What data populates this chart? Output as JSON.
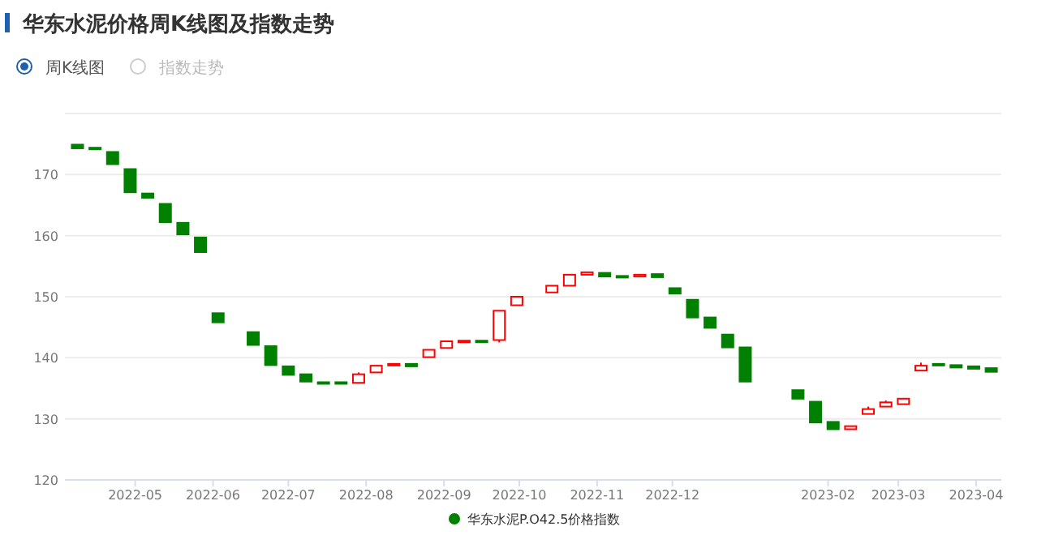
{
  "chart_data": {
    "type": "candlestick",
    "title": "华东水泥价格周K线图及指数走势",
    "annotations": [
      "周K线图",
      "指数走势"
    ],
    "x": [
      "2022-04-08",
      "2022-04-15",
      "2022-04-22",
      "2022-04-29",
      "2022-05-06",
      "2022-05-13",
      "2022-05-20",
      "2022-05-27",
      "2022-06-03",
      "2022-06-17",
      "2022-06-24",
      "2022-07-01",
      "2022-07-08",
      "2022-07-15",
      "2022-07-22",
      "2022-07-29",
      "2022-08-05",
      "2022-08-12",
      "2022-08-19",
      "2022-08-26",
      "2022-09-02",
      "2022-09-09",
      "2022-09-16",
      "2022-09-23",
      "2022-09-30",
      "2022-10-14",
      "2022-10-21",
      "2022-10-28",
      "2022-11-04",
      "2022-11-11",
      "2022-11-18",
      "2022-11-25",
      "2022-12-02",
      "2022-12-09",
      "2022-12-16",
      "2022-12-23",
      "2022-12-30",
      "2023-01-20",
      "2023-01-27",
      "2023-02-03",
      "2023-02-10",
      "2023-02-17",
      "2023-02-24",
      "2023-03-03",
      "2023-03-10",
      "2023-03-17",
      "2023-03-24",
      "2023-03-31",
      "2023-04-07"
    ],
    "series": [
      {
        "name": "华东水泥P.O42.5价格指数",
        "color": "#008000",
        "colors": [
          "#008000",
          "#008000",
          "#008000",
          "#008000",
          "#008000",
          "#008000",
          "#008000",
          "#008000",
          "#008000",
          "#008000",
          "#008000",
          "#008000",
          "#008000",
          "#008000",
          "#008000",
          "#ff0000",
          "#ff0000",
          "#ff0000",
          "#008000",
          "#ff0000",
          "#ff0000",
          "#ff0000",
          "#008000",
          "#ff0000",
          "#ff0000",
          "#ff0000",
          "#ff0000",
          "#ff0000",
          "#008000",
          "#008000",
          "#ff0000",
          "#008000",
          "#008000",
          "#008000",
          "#008000",
          "#008000",
          "#008000",
          "#008000",
          "#008000",
          "#008000",
          "#ff0000",
          "#ff0000",
          "#ff0000",
          "#ff0000",
          "#ff0000",
          "#008000",
          "#008000",
          "#008000",
          "#008000"
        ],
        "ohlc": [
          [
            174.9,
            174.9,
            174.3,
            174.3
          ],
          [
            174.4,
            174.4,
            174.2,
            174.2
          ],
          [
            173.7,
            173.7,
            171.7,
            171.7
          ],
          [
            170.9,
            170.9,
            167.1,
            167.1
          ],
          [
            166.9,
            166.9,
            166.2,
            166.2
          ],
          [
            165.2,
            165.2,
            162.2,
            162.2
          ],
          [
            162.1,
            162.1,
            160.2,
            160.2
          ],
          [
            159.7,
            159.7,
            157.3,
            157.3
          ],
          [
            147.3,
            147.3,
            145.8,
            145.8
          ],
          [
            144.2,
            144.2,
            142.1,
            142.1
          ],
          [
            141.9,
            141.9,
            138.8,
            138.8
          ],
          [
            138.6,
            138.6,
            137.2,
            137.2
          ],
          [
            137.3,
            137.3,
            136.1,
            136.1
          ],
          [
            136.0,
            136.0,
            135.8,
            135.8
          ],
          [
            136.0,
            136.0,
            135.8,
            135.8
          ],
          [
            135.9,
            137.6,
            135.9,
            137.3
          ],
          [
            137.6,
            138.7,
            137.6,
            138.7
          ],
          [
            138.8,
            139.0,
            138.8,
            139.0
          ],
          [
            139.0,
            139.0,
            138.6,
            138.6
          ],
          [
            140.1,
            141.3,
            140.1,
            141.3
          ],
          [
            141.6,
            142.7,
            141.6,
            142.7
          ],
          [
            142.7,
            142.8,
            142.7,
            142.8
          ],
          [
            142.8,
            142.8,
            142.6,
            142.6
          ],
          [
            142.9,
            147.7,
            142.5,
            147.7
          ],
          [
            148.6,
            150.0,
            148.6,
            150.0
          ],
          [
            150.7,
            151.8,
            150.7,
            151.8
          ],
          [
            151.8,
            153.6,
            151.8,
            153.6
          ],
          [
            153.6,
            154.0,
            153.6,
            154.0
          ],
          [
            153.9,
            153.9,
            153.3,
            153.3
          ],
          [
            153.4,
            153.4,
            153.3,
            153.3
          ],
          [
            153.3,
            153.6,
            153.3,
            153.6
          ],
          [
            153.7,
            153.7,
            153.2,
            153.2
          ],
          [
            151.4,
            151.4,
            150.5,
            150.5
          ],
          [
            149.5,
            149.5,
            146.6,
            146.6
          ],
          [
            146.6,
            146.6,
            144.9,
            144.9
          ],
          [
            143.8,
            143.8,
            141.7,
            141.7
          ],
          [
            141.7,
            141.7,
            136.1,
            136.1
          ],
          [
            134.7,
            134.7,
            133.3,
            133.3
          ],
          [
            132.8,
            132.8,
            129.4,
            129.4
          ],
          [
            129.5,
            129.5,
            128.3,
            128.3
          ],
          [
            128.3,
            128.8,
            128.3,
            128.8
          ],
          [
            130.8,
            132.0,
            130.8,
            131.6
          ],
          [
            132.0,
            133.0,
            132.0,
            132.7
          ],
          [
            132.4,
            133.3,
            132.4,
            133.3
          ],
          [
            137.9,
            139.2,
            137.9,
            138.7
          ],
          [
            139.0,
            139.0,
            138.8,
            138.8
          ],
          [
            138.8,
            138.8,
            138.4,
            138.4
          ],
          [
            138.6,
            138.6,
            138.2,
            138.2
          ],
          [
            138.3,
            138.3,
            137.7,
            137.7
          ]
        ]
      }
    ],
    "xlim": [
      "2022-04-03",
      "2023-04-11"
    ],
    "xticks": [
      "2022-05",
      "2022-06",
      "2022-07",
      "2022-08",
      "2022-09",
      "2022-10",
      "2022-11",
      "2022-12",
      "2023-02",
      "2023-03",
      "2023-04"
    ],
    "ylim": [
      120,
      180
    ],
    "yticks": [
      120,
      130,
      140,
      150,
      160,
      170,
      {
        "value": 180,
        "label": null
      }
    ],
    "grid": "y",
    "legend": "bottom"
  }
}
